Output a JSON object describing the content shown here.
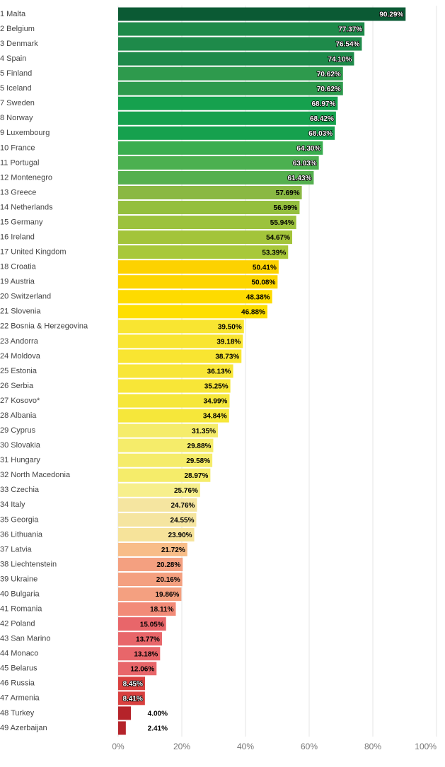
{
  "chart_data": {
    "type": "hbar",
    "categories": [
      "1 Malta",
      "2 Belgium",
      "3 Denmark",
      "4 Spain",
      "5 Finland",
      "5 Iceland",
      "7 Sweden",
      "8 Norway",
      "9 Luxembourg",
      "10 France",
      "11 Portugal",
      "12 Montenegro",
      "13 Greece",
      "14 Netherlands",
      "15 Germany",
      "16 Ireland",
      "17 United Kingdom",
      "18 Croatia",
      "19 Austria",
      "20 Switzerland",
      "21 Slovenia",
      "22 Bosnia & Herzegovina",
      "23 Andorra",
      "24 Moldova",
      "25 Estonia",
      "26 Serbia",
      "27 Kosovo*",
      "28 Albania",
      "29 Cyprus",
      "30 Slovakia",
      "31 Hungary",
      "32 North Macedonia",
      "33 Czechia",
      "34 Italy",
      "35 Georgia",
      "36 Lithuania",
      "37 Latvia",
      "38 Liechtenstein",
      "39 Ukraine",
      "40 Bulgaria",
      "41 Romania",
      "42 Poland",
      "43 San Marino",
      "44 Monaco",
      "45 Belarus",
      "46 Russia",
      "47 Armenia",
      "48 Turkey",
      "49 Azerbaijan"
    ],
    "values": [
      90.29,
      77.37,
      76.54,
      74.1,
      70.62,
      70.62,
      68.97,
      68.42,
      68.03,
      64.3,
      63.03,
      61.43,
      57.69,
      56.99,
      55.94,
      54.67,
      53.39,
      50.41,
      50.08,
      48.38,
      46.88,
      39.5,
      39.18,
      38.73,
      36.13,
      35.25,
      34.99,
      34.84,
      31.35,
      29.88,
      29.58,
      28.97,
      25.76,
      24.76,
      24.55,
      23.9,
      21.72,
      20.28,
      20.16,
      19.86,
      18.11,
      15.05,
      13.77,
      13.18,
      12.06,
      8.45,
      8.41,
      4.0,
      2.41
    ],
    "value_labels": [
      "90.29%",
      "77.37%",
      "76.54%",
      "74.10%",
      "70.62%",
      "70.62%",
      "68.97%",
      "68.42%",
      "68.03%",
      "64.30%",
      "63.03%",
      "61.43%",
      "57.69%",
      "56.99%",
      "55.94%",
      "54.67%",
      "53.39%",
      "50.41%",
      "50.08%",
      "48.38%",
      "46.88%",
      "39.50%",
      "39.18%",
      "38.73%",
      "36.13%",
      "35.25%",
      "34.99%",
      "34.84%",
      "31.35%",
      "29.88%",
      "29.58%",
      "28.97%",
      "25.76%",
      "24.76%",
      "24.55%",
      "23.90%",
      "21.72%",
      "20.28%",
      "20.16%",
      "19.86%",
      "18.11%",
      "15.05%",
      "13.77%",
      "13.18%",
      "12.06%",
      "8.45%",
      "8.41%",
      "4.00%",
      "2.41%"
    ],
    "colors": [
      "#0b5a34",
      "#1e8a4a",
      "#1e8a4a",
      "#1e8a4a",
      "#2e9a4d",
      "#2e9a4d",
      "#16a14e",
      "#16a14e",
      "#16a14e",
      "#3aae50",
      "#4cb050",
      "#55b04f",
      "#8ab843",
      "#94bf3e",
      "#9cc23d",
      "#a3c43a",
      "#a8c83a",
      "#fdd200",
      "#fdd600",
      "#fedb00",
      "#fedf00",
      "#f9e531",
      "#f9e531",
      "#f9e531",
      "#f8e637",
      "#f8e637",
      "#f6e73a",
      "#f6e73a",
      "#f5ec6a",
      "#f5ec6a",
      "#f5ec6a",
      "#f5ec6a",
      "#f7ef8c",
      "#f5e5a0",
      "#f5e5a0",
      "#f6e39a",
      "#f8bd88",
      "#f4a080",
      "#f4a080",
      "#f4a080",
      "#f28b78",
      "#e8666a",
      "#e8666a",
      "#e8666a",
      "#e8666a",
      "#d9403f",
      "#d9403f",
      "#b5232a",
      "#b5232a"
    ],
    "xlim": [
      0,
      100
    ],
    "xticks": [
      {
        "value": 0,
        "label": "0%"
      },
      {
        "value": 20,
        "label": "20%"
      },
      {
        "value": 40,
        "label": "40%"
      },
      {
        "value": 60,
        "label": "60%"
      },
      {
        "value": 80,
        "label": "80%"
      },
      {
        "value": 100,
        "label": "100%"
      }
    ],
    "grid": true
  }
}
